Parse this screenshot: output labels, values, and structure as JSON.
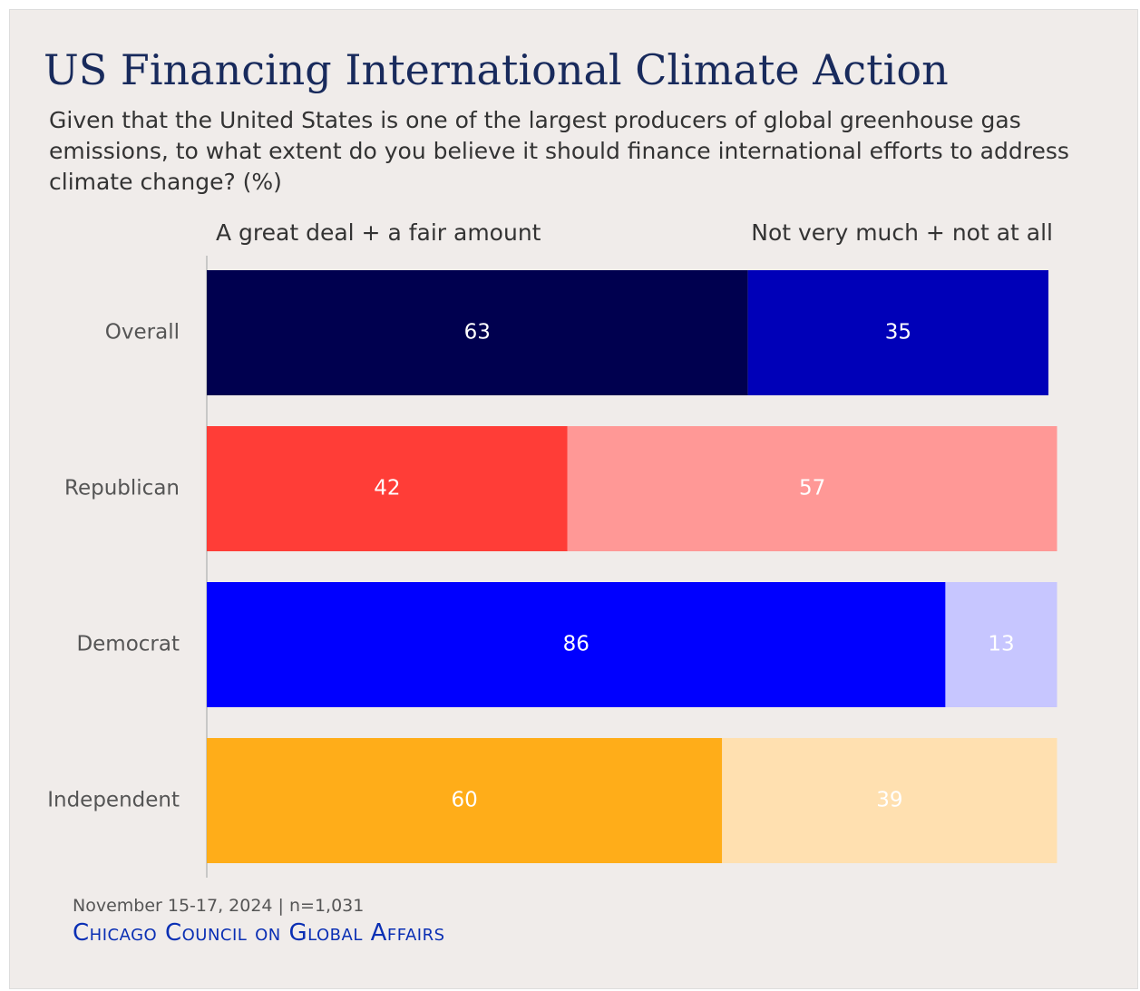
{
  "chart_data": {
    "type": "bar",
    "orientation": "horizontal",
    "stacked": true,
    "title": "US Financing International Climate Action",
    "subtitle": "Given that the United States is one of the largest producers of global greenhouse gas emissions, to what extent do you believe it should finance international efforts to address climate change? (%)",
    "categories": [
      "Overall",
      "Republican",
      "Democrat",
      "Independent"
    ],
    "series": [
      {
        "name": "A great deal + a fair amount",
        "colors": [
          "#00004f",
          "#ff3d37",
          "#0000ff",
          "#ffad19"
        ],
        "values": [
          63,
          42,
          86,
          60
        ]
      },
      {
        "name": "Not very much + not at all",
        "colors": [
          "#0000b8",
          "#ff9896",
          "#c7c6ff",
          "#ffe0b0"
        ],
        "values": [
          35,
          57,
          13,
          39
        ]
      }
    ],
    "xlim": [
      0,
      100
    ],
    "footnote": "November 15-17, 2024 | n=1,031",
    "source": "Chicago Council on Global Affairs"
  }
}
